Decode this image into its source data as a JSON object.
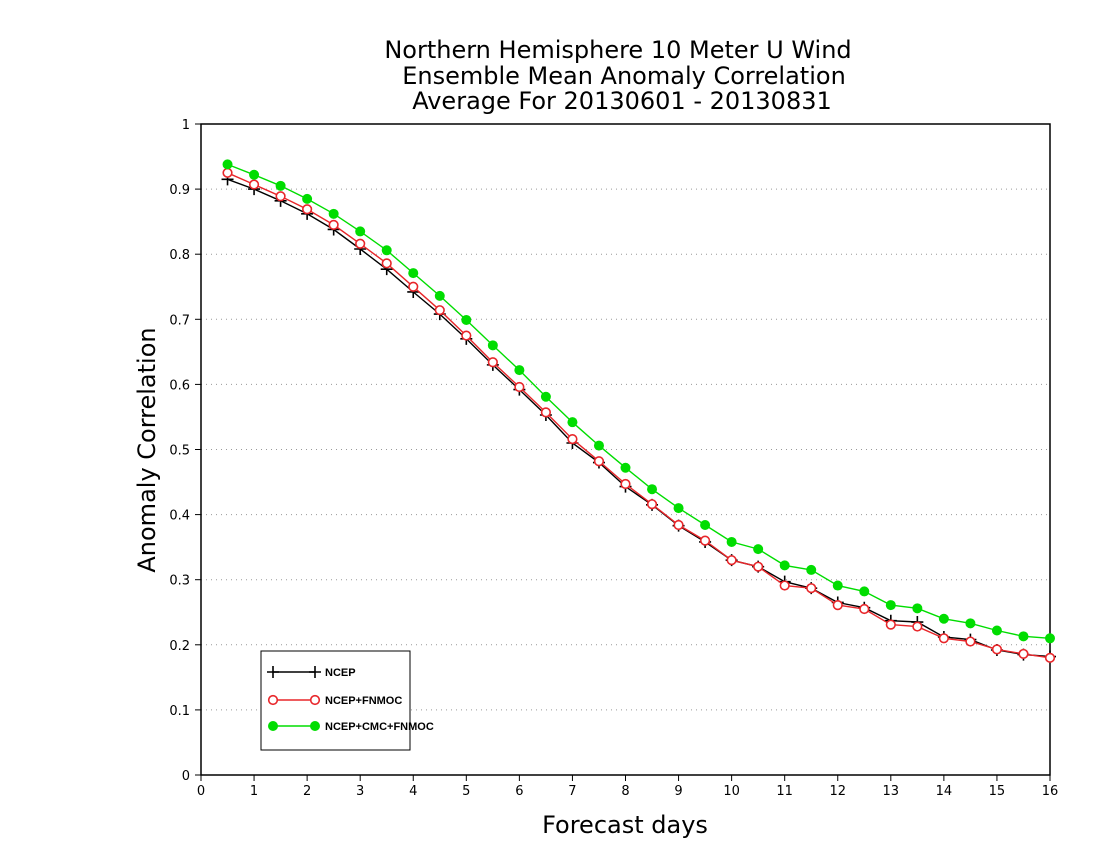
{
  "chart_data": {
    "type": "line",
    "title": [
      "Northern Hemisphere 10 Meter U Wind",
      "Ensemble Mean Anomaly Correlation",
      "Average For 20130601 - 20130831"
    ],
    "xlabel": "Forecast days",
    "ylabel": "Anomaly Correlation",
    "xlim": [
      0,
      16
    ],
    "ylim": [
      0,
      1
    ],
    "xticks": [
      "0",
      "1",
      "2",
      "3",
      "4",
      "5",
      "6",
      "7",
      "8",
      "9",
      "10",
      "11",
      "12",
      "13",
      "14",
      "15",
      "16"
    ],
    "yticks": [
      "0",
      "0.1",
      "0.2",
      "0.3",
      "0.4",
      "0.5",
      "0.6",
      "0.7",
      "0.8",
      "0.9",
      "1"
    ],
    "grid": true,
    "legend_position": "bottom-left",
    "x": [
      0.5,
      1,
      1.5,
      2,
      2.5,
      3,
      3.5,
      4,
      4.5,
      5,
      5.5,
      6,
      6.5,
      7,
      7.5,
      8,
      8.5,
      9,
      9.5,
      10,
      10.5,
      11,
      11.5,
      12,
      12.5,
      13,
      13.5,
      14,
      14.5,
      15,
      15.5,
      16
    ],
    "series": [
      {
        "name": "NCEP",
        "color": "#000000",
        "marker": "plus",
        "values": [
          0.915,
          0.9,
          0.882,
          0.862,
          0.838,
          0.808,
          0.777,
          0.742,
          0.708,
          0.67,
          0.63,
          0.592,
          0.553,
          0.51,
          0.48,
          0.443,
          0.415,
          0.383,
          0.358,
          0.33,
          0.32,
          0.297,
          0.287,
          0.265,
          0.257,
          0.237,
          0.235,
          0.212,
          0.208,
          0.192,
          0.185,
          0.182
        ]
      },
      {
        "name": "NCEP+FNMOC",
        "color": "#e8262a",
        "marker": "open-circle",
        "values": [
          0.925,
          0.907,
          0.889,
          0.869,
          0.845,
          0.816,
          0.786,
          0.75,
          0.714,
          0.675,
          0.634,
          0.596,
          0.557,
          0.516,
          0.482,
          0.447,
          0.416,
          0.384,
          0.36,
          0.33,
          0.32,
          0.291,
          0.287,
          0.261,
          0.255,
          0.231,
          0.228,
          0.21,
          0.205,
          0.193,
          0.186,
          0.18
        ]
      },
      {
        "name": "NCEP+CMC+FNMOC",
        "color": "#00dd00",
        "marker": "filled-circle",
        "values": [
          0.938,
          0.922,
          0.905,
          0.885,
          0.862,
          0.835,
          0.806,
          0.771,
          0.736,
          0.699,
          0.66,
          0.622,
          0.581,
          0.542,
          0.506,
          0.472,
          0.439,
          0.41,
          0.384,
          0.358,
          0.347,
          0.322,
          0.315,
          0.291,
          0.282,
          0.261,
          0.256,
          0.24,
          0.233,
          0.222,
          0.213,
          0.21
        ]
      }
    ]
  }
}
